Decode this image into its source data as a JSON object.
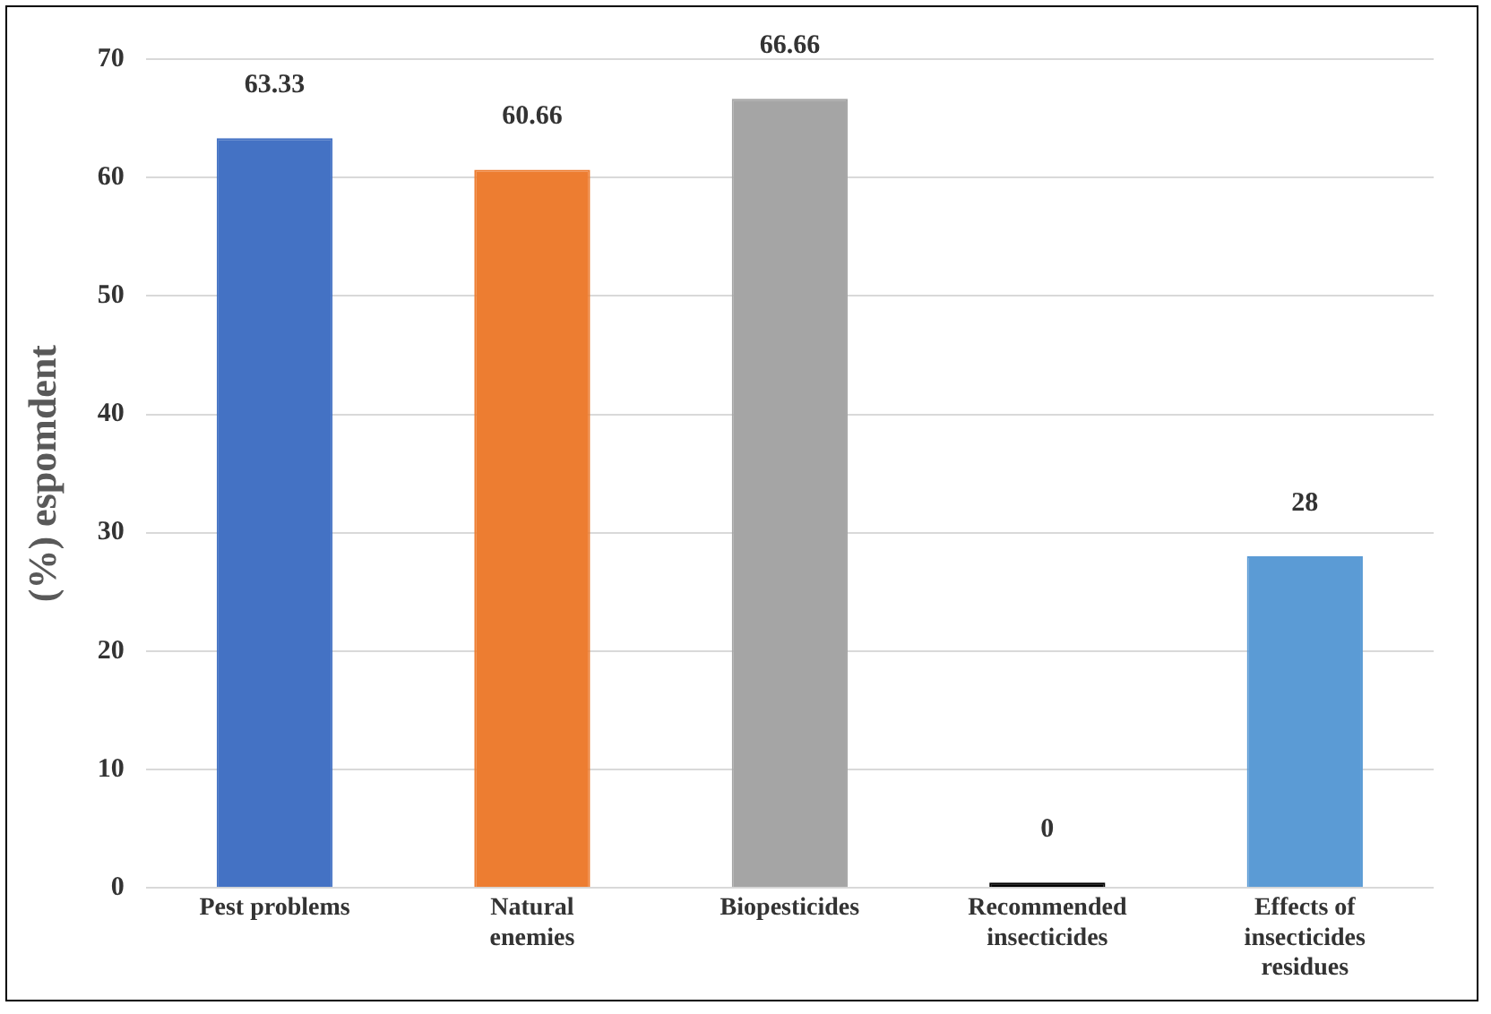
{
  "chart_data": {
    "type": "bar",
    "ylabel": "(%) espomdent",
    "categories": [
      "Pest problems",
      "Natural enemies",
      "Biopesticides",
      "Recommended insecticides",
      "Effects of insecticides residues"
    ],
    "values": [
      63.33,
      60.66,
      66.66,
      0,
      28
    ],
    "colors": [
      "#4472c4",
      "#ed7d31",
      "#a5a5a5",
      "#000000",
      "#5b9bd5"
    ],
    "ylim": [
      0,
      70
    ],
    "yticks": [
      0,
      10,
      20,
      30,
      40,
      50,
      60,
      70
    ],
    "grid": "y",
    "data_labels": true,
    "legend": false
  }
}
